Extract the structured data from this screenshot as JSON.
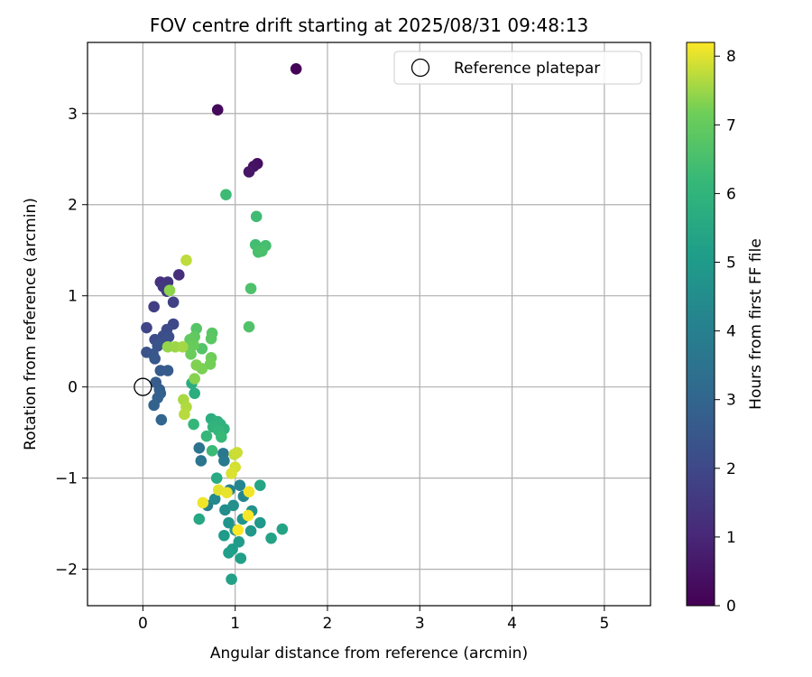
{
  "chart_data": {
    "type": "scatter",
    "title": "FOV centre drift starting at 2025/08/31 09:48:13",
    "xlabel": "Angular distance from reference (arcmin)",
    "ylabel": "Rotation from reference (arcmin)",
    "colorbar_label": "Hours from first FF file",
    "xlim": [
      -0.6,
      5.5
    ],
    "ylim": [
      -2.4,
      3.78
    ],
    "xticks": [
      0,
      1,
      2,
      3,
      4,
      5
    ],
    "yticks": [
      -2,
      -1,
      0,
      1,
      2,
      3
    ],
    "colorbar_range": [
      0,
      8.2
    ],
    "colorbar_ticks": [
      0,
      1,
      2,
      3,
      4,
      5,
      6,
      7,
      8
    ],
    "colormap": "viridis",
    "grid": true,
    "legend_position": "top-right",
    "reference": {
      "name": "Reference platepar",
      "x": 0,
      "y": 0
    },
    "points": [
      {
        "x": 1.66,
        "y": 3.49,
        "h": 0.05
      },
      {
        "x": 0.81,
        "y": 3.04,
        "h": 0.2
      },
      {
        "x": 1.24,
        "y": 2.45,
        "h": 0.35
      },
      {
        "x": 1.2,
        "y": 2.42,
        "h": 0.45
      },
      {
        "x": 1.15,
        "y": 2.36,
        "h": 0.55
      },
      {
        "x": 0.39,
        "y": 1.23,
        "h": 1.2
      },
      {
        "x": 0.19,
        "y": 1.15,
        "h": 1.3
      },
      {
        "x": 0.27,
        "y": 1.15,
        "h": 1.4
      },
      {
        "x": 0.22,
        "y": 1.1,
        "h": 1.5
      },
      {
        "x": 0.26,
        "y": 1.05,
        "h": 1.55
      },
      {
        "x": 0.12,
        "y": 0.88,
        "h": 1.7
      },
      {
        "x": 0.33,
        "y": 0.93,
        "h": 1.8
      },
      {
        "x": 0.04,
        "y": 0.65,
        "h": 1.9
      },
      {
        "x": 0.33,
        "y": 0.69,
        "h": 2.0
      },
      {
        "x": 0.26,
        "y": 0.63,
        "h": 2.1
      },
      {
        "x": 0.13,
        "y": 0.52,
        "h": 2.15
      },
      {
        "x": 0.22,
        "y": 0.56,
        "h": 2.2
      },
      {
        "x": 0.28,
        "y": 0.55,
        "h": 2.25
      },
      {
        "x": 0.19,
        "y": 0.48,
        "h": 2.3
      },
      {
        "x": 0.16,
        "y": 0.45,
        "h": 2.35
      },
      {
        "x": 0.04,
        "y": 0.38,
        "h": 2.4
      },
      {
        "x": 0.11,
        "y": 0.36,
        "h": 2.45
      },
      {
        "x": 0.13,
        "y": 0.31,
        "h": 2.5
      },
      {
        "x": 0.19,
        "y": 0.18,
        "h": 2.6
      },
      {
        "x": 0.27,
        "y": 0.18,
        "h": 2.65
      },
      {
        "x": 0.14,
        "y": 0.05,
        "h": 2.7
      },
      {
        "x": 0.18,
        "y": -0.03,
        "h": 2.75
      },
      {
        "x": 0.19,
        "y": -0.07,
        "h": 2.8
      },
      {
        "x": 0.16,
        "y": -0.12,
        "h": 2.85
      },
      {
        "x": 0.12,
        "y": -0.2,
        "h": 2.9
      },
      {
        "x": 0.2,
        "y": -0.36,
        "h": 3.0
      },
      {
        "x": 0.61,
        "y": -0.67,
        "h": 3.5
      },
      {
        "x": 0.63,
        "y": -0.81,
        "h": 3.6
      },
      {
        "x": 0.87,
        "y": -0.73,
        "h": 3.7
      },
      {
        "x": 0.88,
        "y": -0.81,
        "h": 3.8
      },
      {
        "x": 0.7,
        "y": -1.3,
        "h": 4.0
      },
      {
        "x": 0.94,
        "y": -1.13,
        "h": 4.1
      },
      {
        "x": 1.05,
        "y": -1.08,
        "h": 4.2
      },
      {
        "x": 1.09,
        "y": -1.2,
        "h": 4.3
      },
      {
        "x": 0.78,
        "y": -1.23,
        "h": 4.4
      },
      {
        "x": 0.89,
        "y": -1.35,
        "h": 4.5
      },
      {
        "x": 0.98,
        "y": -1.3,
        "h": 4.6
      },
      {
        "x": 1.18,
        "y": -1.36,
        "h": 4.7
      },
      {
        "x": 1.08,
        "y": -1.45,
        "h": 4.75
      },
      {
        "x": 0.93,
        "y": -1.49,
        "h": 4.8
      },
      {
        "x": 1.0,
        "y": -1.57,
        "h": 4.85
      },
      {
        "x": 1.17,
        "y": -1.58,
        "h": 4.9
      },
      {
        "x": 1.27,
        "y": -1.49,
        "h": 4.95
      },
      {
        "x": 0.88,
        "y": -1.63,
        "h": 5.0
      },
      {
        "x": 1.04,
        "y": -1.7,
        "h": 5.05
      },
      {
        "x": 0.97,
        "y": -1.78,
        "h": 5.1
      },
      {
        "x": 0.93,
        "y": -1.82,
        "h": 5.15
      },
      {
        "x": 1.06,
        "y": -1.88,
        "h": 5.2
      },
      {
        "x": 0.96,
        "y": -2.11,
        "h": 5.25
      },
      {
        "x": 1.39,
        "y": -1.66,
        "h": 5.3
      },
      {
        "x": 1.51,
        "y": -1.56,
        "h": 5.35
      },
      {
        "x": 1.27,
        "y": -1.08,
        "h": 5.4
      },
      {
        "x": 0.61,
        "y": -1.45,
        "h": 5.5
      },
      {
        "x": 0.8,
        "y": -1.0,
        "h": 5.6
      },
      {
        "x": 0.53,
        "y": 0.04,
        "h": 5.7
      },
      {
        "x": 0.56,
        "y": -0.07,
        "h": 5.75
      },
      {
        "x": 0.74,
        "y": -0.35,
        "h": 5.8
      },
      {
        "x": 0.81,
        "y": -0.38,
        "h": 5.85
      },
      {
        "x": 0.84,
        "y": -0.41,
        "h": 5.9
      },
      {
        "x": 0.88,
        "y": -0.46,
        "h": 5.95
      },
      {
        "x": 0.76,
        "y": -0.44,
        "h": 6.0
      },
      {
        "x": 0.82,
        "y": -0.48,
        "h": 6.05
      },
      {
        "x": 0.55,
        "y": -0.41,
        "h": 6.1
      },
      {
        "x": 0.69,
        "y": -0.54,
        "h": 6.15
      },
      {
        "x": 0.85,
        "y": -0.55,
        "h": 6.2
      },
      {
        "x": 0.75,
        "y": -0.7,
        "h": 6.25
      },
      {
        "x": 0.9,
        "y": 2.11,
        "h": 6.3
      },
      {
        "x": 1.23,
        "y": 1.87,
        "h": 6.35
      },
      {
        "x": 1.22,
        "y": 1.56,
        "h": 6.4
      },
      {
        "x": 1.33,
        "y": 1.55,
        "h": 6.45
      },
      {
        "x": 1.25,
        "y": 1.48,
        "h": 6.5
      },
      {
        "x": 1.29,
        "y": 1.49,
        "h": 6.55
      },
      {
        "x": 1.17,
        "y": 1.08,
        "h": 6.6
      },
      {
        "x": 1.15,
        "y": 0.66,
        "h": 6.65
      },
      {
        "x": 0.64,
        "y": 0.42,
        "h": 6.7
      },
      {
        "x": 0.58,
        "y": 0.64,
        "h": 6.75
      },
      {
        "x": 0.75,
        "y": 0.59,
        "h": 6.8
      },
      {
        "x": 0.74,
        "y": 0.53,
        "h": 6.85
      },
      {
        "x": 0.56,
        "y": 0.55,
        "h": 6.9
      },
      {
        "x": 0.51,
        "y": 0.52,
        "h": 6.95
      },
      {
        "x": 0.5,
        "y": 0.43,
        "h": 7.0
      },
      {
        "x": 0.55,
        "y": 0.46,
        "h": 7.05
      },
      {
        "x": 0.52,
        "y": 0.36,
        "h": 7.1
      },
      {
        "x": 0.74,
        "y": 0.32,
        "h": 7.15
      },
      {
        "x": 0.73,
        "y": 0.25,
        "h": 7.2
      },
      {
        "x": 0.64,
        "y": 0.2,
        "h": 7.25
      },
      {
        "x": 0.58,
        "y": 0.24,
        "h": 7.3
      },
      {
        "x": 0.56,
        "y": 0.09,
        "h": 7.35
      },
      {
        "x": 0.29,
        "y": 1.06,
        "h": 7.4
      },
      {
        "x": 0.27,
        "y": 0.44,
        "h": 7.45
      },
      {
        "x": 0.35,
        "y": 0.44,
        "h": 7.5
      },
      {
        "x": 0.43,
        "y": 0.44,
        "h": 7.55
      },
      {
        "x": 0.44,
        "y": -0.14,
        "h": 7.6
      },
      {
        "x": 0.47,
        "y": -0.22,
        "h": 7.65
      },
      {
        "x": 0.45,
        "y": -0.3,
        "h": 7.7
      },
      {
        "x": 0.47,
        "y": 1.39,
        "h": 7.75
      },
      {
        "x": 0.99,
        "y": -0.74,
        "h": 7.8
      },
      {
        "x": 1.02,
        "y": -0.72,
        "h": 7.85
      },
      {
        "x": 1.0,
        "y": -0.88,
        "h": 7.9
      },
      {
        "x": 0.96,
        "y": -0.95,
        "h": 7.95
      },
      {
        "x": 0.82,
        "y": -1.13,
        "h": 8.0
      },
      {
        "x": 0.91,
        "y": -1.16,
        "h": 8.05
      },
      {
        "x": 0.65,
        "y": -1.27,
        "h": 8.1
      },
      {
        "x": 1.15,
        "y": -1.15,
        "h": 8.12
      },
      {
        "x": 1.14,
        "y": -1.41,
        "h": 8.15
      },
      {
        "x": 1.03,
        "y": -1.57,
        "h": 8.18
      }
    ]
  }
}
